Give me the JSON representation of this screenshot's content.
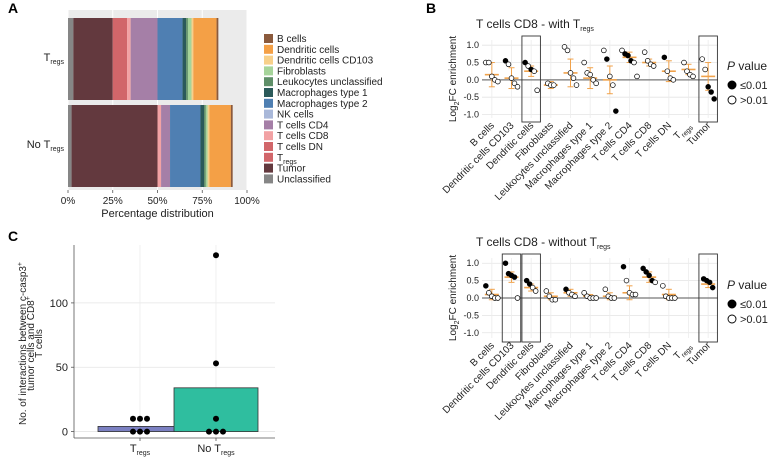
{
  "panel_labels": {
    "a": "A",
    "b": "B",
    "c": "C"
  },
  "colors": {
    "B cells": "#8b5a3c",
    "Dendritic cells": "#f4a046",
    "Dendritic cells CD103": "#f7d08a",
    "Fibroblasts": "#a6d49a",
    "Leukocytes unclassified": "#5f8f68",
    "Macrophages type 1": "#2b5a5a",
    "Macrophages type 2": "#4f7fb2",
    "NK cells": "#a9b8d9",
    "T cells CD4": "#a57fa7",
    "T cells CD8": "#f2a2a4",
    "T cells DN": "#d1666a",
    "Tregs": "#d1666a",
    "Tumor": "#63393e",
    "Unclassified": "#868686",
    "tregs_bar": "#7b80c2",
    "notregs_bar": "#2fbe9f",
    "median": "#f0a24b",
    "zero_line": "#777777"
  },
  "chart_data": [
    {
      "id": "A",
      "type": "bar",
      "orientation": "horizontal-stacked",
      "categories": [
        "Tregs",
        "No Tregs"
      ],
      "category_labels": [
        {
          "main": "T",
          "sub": "regs"
        },
        {
          "main": "No T",
          "sub": "regs"
        }
      ],
      "stack_order": [
        "Unclassified",
        "Tumor",
        "Tregs",
        "T cells DN",
        "T cells CD8",
        "T cells CD4",
        "NK cells",
        "Macrophages type 2",
        "Macrophages type 1",
        "Leukocytes unclassified",
        "Fibroblasts",
        "Dendritic cells CD103",
        "Dendritic cells",
        "B cells"
      ],
      "series": [
        {
          "name": "Unclassified",
          "values": [
            3,
            2
          ]
        },
        {
          "name": "Tumor",
          "values": [
            22,
            48
          ]
        },
        {
          "name": "Tregs",
          "values": [
            0,
            0
          ]
        },
        {
          "name": "T cells DN",
          "values": [
            8,
            0
          ]
        },
        {
          "name": "T cells CD8",
          "values": [
            2,
            2
          ]
        },
        {
          "name": "T cells CD4",
          "values": [
            15,
            5
          ]
        },
        {
          "name": "NK cells",
          "values": [
            0,
            0
          ]
        },
        {
          "name": "Macrophages type 2",
          "values": [
            14,
            17
          ]
        },
        {
          "name": "Macrophages type 1",
          "values": [
            2,
            2
          ]
        },
        {
          "name": "Leukocytes unclassified",
          "values": [
            1,
            1
          ]
        },
        {
          "name": "Fibroblasts",
          "values": [
            2,
            1
          ]
        },
        {
          "name": "Dendritic cells CD103",
          "values": [
            1,
            1
          ]
        },
        {
          "name": "Dendritic cells",
          "values": [
            13,
            12
          ]
        },
        {
          "name": "B cells",
          "values": [
            1,
            1
          ]
        }
      ],
      "xlim": [
        0,
        100
      ],
      "xticks": [
        "0%",
        "25%",
        "50%",
        "75%",
        "100%"
      ],
      "xlabel": "Percentage distribution",
      "legend": [
        {
          "key": "B cells",
          "label": "B cells"
        },
        {
          "key": "Dendritic cells",
          "label": "Dendritic cells"
        },
        {
          "key": "Dendritic cells CD103",
          "label": "Dendritic cells CD103"
        },
        {
          "key": "Fibroblasts",
          "label": "Fibroblasts"
        },
        {
          "key": "Leukocytes unclassified",
          "label": "Leukocytes unclassified"
        },
        {
          "key": "Macrophages type 1",
          "label": "Macrophages type 1"
        },
        {
          "key": "Macrophages type 2",
          "label": "Macrophages type 2"
        },
        {
          "key": "NK cells",
          "label": "NK cells"
        },
        {
          "key": "T cells CD4",
          "label": "T cells CD4"
        },
        {
          "key": "T cells CD8",
          "label": "T cells CD8"
        },
        {
          "key": "T cells DN",
          "label": "T cells DN"
        },
        {
          "key": "Tregs",
          "label": "T",
          "sub": "regs"
        },
        {
          "key": "Tumor",
          "label": "Tumor"
        },
        {
          "key": "Unclassified",
          "label": "Unclassified"
        }
      ],
      "legend_position": "right"
    },
    {
      "id": "B-top",
      "type": "scatter",
      "title": "T cells CD8 - with T",
      "title_sub": "regs",
      "ylabel": "Log",
      "ylabel_sub": "2",
      "ylabel_rest": "FC enrichment",
      "ylim": [
        -1.1,
        1.15
      ],
      "yticks": [
        "-1.0",
        "-0.5",
        "0.0",
        "0.5",
        "1.0"
      ],
      "categories": [
        "B cells",
        "Dendritic cells CD103",
        "Dendritic cells",
        "Fibroblasts",
        "Leukocytes unclassified",
        "Macrophages type 1",
        "Macrophages type 2",
        "T cells CD4",
        "T cells CD8",
        "T cells DN",
        "Tregs",
        "Tumor"
      ],
      "category_labels": [
        "B cells",
        "Dendritic cells CD103",
        "Dendritic cells",
        "Fibroblasts",
        "Leukocytes unclassified",
        "Macrophages type 1",
        "Macrophages type 2",
        "T cells CD4",
        "T cells CD8",
        "T cells DN",
        "T",
        "Tumor"
      ],
      "boxed_categories": [
        "Dendritic cells",
        "Tumor"
      ],
      "medians": [
        0.15,
        0.05,
        0.25,
        -0.15,
        0.2,
        0.05,
        0.0,
        0.65,
        0.5,
        0.25,
        0.3,
        0.1
      ],
      "errors": [
        0.35,
        0.3,
        0.15,
        0.1,
        0.4,
        0.3,
        0.4,
        0.15,
        0.1,
        0.3,
        0.15,
        0.4
      ],
      "points": [
        {
          "cat": 0,
          "values": [
            0.5,
            0.5,
            0.1,
            0.0,
            -0.05
          ],
          "sig": [
            false,
            false,
            false,
            false,
            false
          ]
        },
        {
          "cat": 1,
          "values": [
            0.55,
            0.45,
            0.05,
            -0.1,
            -0.2
          ],
          "sig": [
            true,
            false,
            false,
            false,
            false
          ]
        },
        {
          "cat": 2,
          "values": [
            0.5,
            0.4,
            0.3,
            0.25,
            -0.3
          ],
          "sig": [
            true,
            false,
            true,
            false,
            false
          ]
        },
        {
          "cat": 3,
          "values": [
            -0.1,
            -0.15,
            -0.15
          ],
          "sig": [
            false,
            false,
            false
          ]
        },
        {
          "cat": 4,
          "values": [
            0.95,
            0.85,
            0.2,
            0.05,
            -0.15
          ],
          "sig": [
            false,
            false,
            false,
            false,
            false
          ]
        },
        {
          "cat": 5,
          "values": [
            0.5,
            0.2,
            0.15,
            0.0,
            -0.1
          ],
          "sig": [
            false,
            false,
            false,
            false,
            false
          ]
        },
        {
          "cat": 6,
          "values": [
            0.85,
            0.6,
            0.1,
            -0.15,
            -0.9
          ],
          "sig": [
            false,
            true,
            false,
            false,
            true
          ]
        },
        {
          "cat": 7,
          "values": [
            0.85,
            0.75,
            0.7,
            0.55,
            0.5,
            0.1
          ],
          "sig": [
            false,
            true,
            true,
            true,
            false,
            false
          ]
        },
        {
          "cat": 8,
          "values": [
            0.8,
            0.55,
            0.45,
            0.4
          ],
          "sig": [
            false,
            false,
            false,
            false
          ]
        },
        {
          "cat": 9,
          "values": [
            0.65,
            0.25,
            0.05,
            0.0
          ],
          "sig": [
            true,
            false,
            false,
            false
          ]
        },
        {
          "cat": 10,
          "values": [
            0.5,
            0.25,
            0.15,
            0.1
          ],
          "sig": [
            false,
            false,
            false,
            false
          ]
        },
        {
          "cat": 11,
          "values": [
            0.6,
            0.3,
            -0.2,
            -0.35,
            -0.55
          ],
          "sig": [
            false,
            false,
            true,
            true,
            true
          ]
        }
      ]
    },
    {
      "id": "B-bottom",
      "type": "scatter",
      "title": "T cells CD8 - without T",
      "title_sub": "regs",
      "ylabel": "Log",
      "ylabel_sub": "2",
      "ylabel_rest": "FC enrichment",
      "ylim": [
        -1.15,
        1.15
      ],
      "yticks": [
        "-1.0",
        "-0.5",
        "0.0",
        "0.5",
        "1.0"
      ],
      "categories": [
        "B cells",
        "Dendritic cells CD103",
        "Dendritic cells",
        "Fibroblasts",
        "Leukocytes unclassified",
        "Macrophages type 1",
        "Macrophages type 2",
        "T cells CD4",
        "T cells CD8",
        "T cells DN",
        "Tregs",
        "Tumor"
      ],
      "category_labels": [
        "B cells",
        "Dendritic cells CD103",
        "Dendritic cells",
        "Fibroblasts",
        "Leukocytes unclassified",
        "Macrophages type 1",
        "Macrophages type 2",
        "T cells CD4",
        "T cells CD8",
        "T cells DN",
        "T",
        "Tumor"
      ],
      "boxed_categories": [
        "Dendritic cells CD103",
        "Dendritic cells",
        "Tumor"
      ],
      "medians": [
        0.1,
        0.6,
        0.3,
        0.05,
        0.15,
        0.05,
        0.05,
        0.15,
        0.6,
        0.1,
        null,
        0.4
      ],
      "errors": [
        0.15,
        0.15,
        0.1,
        0.1,
        0.1,
        0.05,
        0.1,
        0.2,
        0.15,
        0.15,
        null,
        0.1
      ],
      "points": [
        {
          "cat": 0,
          "values": [
            0.35,
            0.15,
            0.05,
            0.0,
            0.0
          ],
          "sig": [
            true,
            false,
            false,
            false,
            false
          ]
        },
        {
          "cat": 1,
          "values": [
            1.0,
            0.7,
            0.65,
            0.6,
            0.0
          ],
          "sig": [
            true,
            true,
            true,
            true,
            false
          ]
        },
        {
          "cat": 2,
          "values": [
            0.5,
            0.4,
            0.3,
            0.2
          ],
          "sig": [
            true,
            true,
            false,
            false
          ]
        },
        {
          "cat": 3,
          "values": [
            0.2,
            0.05,
            -0.05,
            -0.05
          ],
          "sig": [
            false,
            false,
            false,
            false
          ]
        },
        {
          "cat": 4,
          "values": [
            0.25,
            0.15,
            0.1,
            0.05
          ],
          "sig": [
            true,
            false,
            false,
            false
          ]
        },
        {
          "cat": 5,
          "values": [
            0.15,
            0.05,
            0.0,
            0.0,
            0.0
          ],
          "sig": [
            false,
            false,
            false,
            false,
            false
          ]
        },
        {
          "cat": 6,
          "values": [
            0.25,
            0.05,
            0.0,
            0.0
          ],
          "sig": [
            false,
            false,
            false,
            false
          ]
        },
        {
          "cat": 7,
          "values": [
            0.9,
            0.5,
            0.15,
            0.1,
            0.1
          ],
          "sig": [
            true,
            false,
            false,
            false,
            false
          ]
        },
        {
          "cat": 8,
          "values": [
            0.85,
            0.75,
            0.65,
            0.5,
            0.45
          ],
          "sig": [
            true,
            true,
            true,
            true,
            false
          ]
        },
        {
          "cat": 9,
          "values": [
            0.35,
            0.05,
            0.0,
            0.0,
            0.0
          ],
          "sig": [
            false,
            false,
            false,
            false,
            false
          ]
        },
        {
          "cat": 10,
          "values": [],
          "sig": []
        },
        {
          "cat": 11,
          "values": [
            0.55,
            0.5,
            0.45,
            0.3
          ],
          "sig": [
            true,
            true,
            true,
            true
          ]
        }
      ]
    },
    {
      "id": "C",
      "type": "bar",
      "categories": [
        "Tregs",
        "No Tregs"
      ],
      "category_labels": [
        {
          "main": "T",
          "sub": "regs"
        },
        {
          "main": "No T",
          "sub": "regs"
        }
      ],
      "values": [
        4,
        34
      ],
      "points": [
        [
          10,
          10,
          10,
          0,
          0,
          0
        ],
        [
          137,
          53,
          10,
          0,
          0,
          0
        ]
      ],
      "ylim": [
        -5,
        145
      ],
      "yticks": [
        0,
        50,
        100
      ],
      "ylabel_lines": [
        "No. of interactions between c-casp3",
        "tumor cells and CD8",
        "T cells"
      ],
      "ylabel_sup": "+"
    }
  ],
  "pvalue_legend": {
    "title_italic": "P",
    "title_rest": " value",
    "sig_label": "≤0.01",
    "nonsig_label": ">0.01"
  }
}
